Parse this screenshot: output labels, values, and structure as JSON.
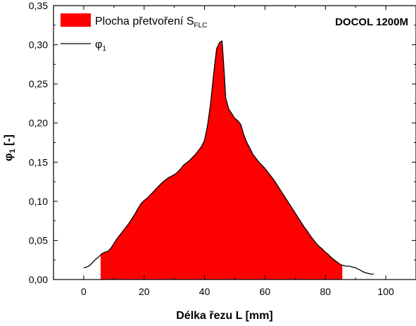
{
  "chart_data": {
    "type": "area",
    "annotation": "DOCOL 1200M",
    "xlabel": "Délka řezu L [mm]",
    "ylabel": {
      "main": "φ",
      "sub": "1",
      "suffix": " [-]"
    },
    "xlim": [
      -10,
      110
    ],
    "ylim": [
      0,
      0.35
    ],
    "xticks": [
      0,
      20,
      40,
      60,
      80,
      100
    ],
    "xtick_labels": [
      "0",
      "20",
      "40",
      "60",
      "80",
      "100"
    ],
    "yticks": [
      0,
      0.05,
      0.1,
      0.15,
      0.2,
      0.25,
      0.3,
      0.35
    ],
    "ytick_labels": [
      "0,00",
      "0,05",
      "0,10",
      "0,15",
      "0,20",
      "0,25",
      "0,30",
      "0,35"
    ],
    "grid": false,
    "legend": {
      "placement": "top-left",
      "entries": [
        {
          "label": "Plocha přetvoření S",
          "sub": "FLC",
          "kind": "fill"
        },
        {
          "label": "φ",
          "sub": "1",
          "kind": "line"
        }
      ]
    },
    "colors": {
      "fill": "#ff0000",
      "line": "#000000",
      "frame": "#000000"
    },
    "fill_range": [
      5.6,
      85.6
    ],
    "series": [
      {
        "name": "φ1",
        "x": [
          0,
          1,
          2,
          3,
          4,
          5,
          6,
          7,
          8,
          9,
          10,
          11,
          12,
          13,
          14,
          15,
          16,
          17,
          18,
          19,
          20,
          21,
          22,
          23,
          24,
          25,
          26,
          27,
          28,
          29,
          30,
          31,
          32,
          33,
          34,
          35,
          36,
          37,
          38,
          39,
          40,
          41,
          42,
          43,
          44,
          45,
          45.8,
          46.5,
          47,
          48,
          49,
          50,
          51,
          52,
          53,
          54,
          55,
          56,
          57,
          58,
          59,
          60,
          61,
          62,
          63,
          64,
          65,
          66,
          67,
          68,
          69,
          70,
          71,
          72,
          73,
          74,
          75,
          76,
          77,
          78,
          79,
          80,
          81,
          82,
          83,
          84,
          85,
          86,
          87,
          88,
          89,
          90,
          91,
          92,
          93,
          94,
          95,
          96
        ],
        "y": [
          0.015,
          0.016,
          0.018,
          0.022,
          0.026,
          0.029,
          0.033,
          0.035,
          0.036,
          0.04,
          0.046,
          0.052,
          0.057,
          0.062,
          0.067,
          0.072,
          0.078,
          0.084,
          0.091,
          0.097,
          0.101,
          0.104,
          0.108,
          0.112,
          0.116,
          0.12,
          0.124,
          0.127,
          0.13,
          0.132,
          0.134,
          0.137,
          0.141,
          0.146,
          0.149,
          0.152,
          0.156,
          0.16,
          0.165,
          0.17,
          0.178,
          0.197,
          0.225,
          0.262,
          0.295,
          0.303,
          0.305,
          0.265,
          0.232,
          0.218,
          0.212,
          0.206,
          0.203,
          0.198,
          0.185,
          0.175,
          0.168,
          0.16,
          0.155,
          0.15,
          0.146,
          0.142,
          0.137,
          0.132,
          0.127,
          0.121,
          0.115,
          0.109,
          0.103,
          0.097,
          0.091,
          0.085,
          0.079,
          0.073,
          0.067,
          0.062,
          0.056,
          0.051,
          0.046,
          0.042,
          0.039,
          0.035,
          0.032,
          0.028,
          0.025,
          0.022,
          0.019,
          0.018,
          0.017,
          0.017,
          0.016,
          0.015,
          0.013,
          0.011,
          0.009,
          0.008,
          0.007,
          0.007
        ]
      }
    ]
  }
}
